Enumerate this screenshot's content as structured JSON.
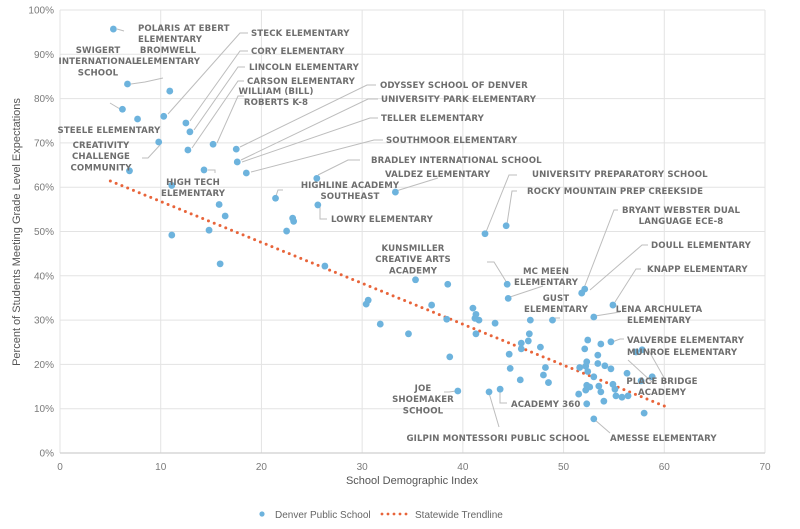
{
  "chart_data": {
    "type": "scatter",
    "title": "",
    "xlabel": "School Demographic Index",
    "ylabel": "Percent of Students Meeting Grade Level Expectations",
    "xlim": [
      0,
      70
    ],
    "ylim": [
      0,
      100
    ],
    "x_ticks": [
      "0",
      "10",
      "20",
      "30",
      "40",
      "50",
      "60",
      "70"
    ],
    "x_tick_values": [
      0,
      10,
      20,
      30,
      40,
      50,
      60,
      70
    ],
    "y_ticks": [
      "0%",
      "10%",
      "20%",
      "30%",
      "40%",
      "50%",
      "60%",
      "70%",
      "80%",
      "90%",
      "100%"
    ],
    "y_tick_values": [
      0,
      10,
      20,
      30,
      40,
      50,
      60,
      70,
      80,
      90,
      100
    ],
    "grid": true,
    "colors": {
      "points": "#6db3dd",
      "trendline": "#e8643a",
      "grid": "#e3e3e3",
      "text": "#6e6e6e"
    },
    "legend": {
      "placement": "bottom-center",
      "entries": [
        {
          "label": "Denver Public School",
          "marker": "dot"
        },
        {
          "label": "Statewide Trendline",
          "marker": "dotted-line"
        }
      ]
    },
    "trendline": {
      "name": "Statewide Trendline",
      "x": [
        5,
        60
      ],
      "y": [
        61.4,
        10.6
      ]
    },
    "series": [
      {
        "name": "Denver Public School",
        "points": [
          {
            "x": 5.3,
            "y": 95.7,
            "label": "POLARIS AT EBERT ELEMENTARY"
          },
          {
            "x": 10.9,
            "y": 81.7,
            "label": "BROMWELL ELEMENTARY"
          },
          {
            "x": 6.7,
            "y": 83.3,
            "label": "SWIGERT INTERNATIONAL SCHOOL"
          },
          {
            "x": 6.2,
            "y": 77.6
          },
          {
            "x": 7.7,
            "y": 75.4
          },
          {
            "x": 10.3,
            "y": 76.0,
            "label": "STECK ELEMENTARY"
          },
          {
            "x": 12.5,
            "y": 74.5,
            "label": "CORY ELEMENTARY"
          },
          {
            "x": 12.9,
            "y": 72.5,
            "label": "LINCOLN ELEMENTARY"
          },
          {
            "x": 9.8,
            "y": 70.2,
            "label": "STEELE ELEMENTARY"
          },
          {
            "x": 12.7,
            "y": 68.4,
            "label": "CARSON ELEMENTARY"
          },
          {
            "x": 15.2,
            "y": 69.7,
            "label": "WILLIAM (BILL) ROBERTS K-8"
          },
          {
            "x": 17.5,
            "y": 68.6,
            "label": "ODYSSEY SCHOOL OF DENVER"
          },
          {
            "x": 17.6,
            "y": 65.7,
            "label": "UNIVERSITY PARK ELEMENTARY"
          },
          {
            "x": 18.5,
            "y": 63.2,
            "label": "TELLER ELEMENTARY"
          },
          {
            "x": 6.9,
            "y": 63.7,
            "label": "CREATIVITY CHALLENGE COMMUNITY"
          },
          {
            "x": 14.3,
            "y": 63.9,
            "label": "HIGH TECH ELEMENTARY"
          },
          {
            "x": 11.1,
            "y": 60.4
          },
          {
            "x": 25.5,
            "y": 62.0,
            "label": "SOUTHMOOR ELEMENTARY"
          },
          {
            "x": 21.4,
            "y": 57.5,
            "label": "HIGHLINE ACADEMY SOUTHEAST"
          },
          {
            "x": 25.6,
            "y": 56.0,
            "label": "BRADLEY INTERNATIONAL SCHOOL"
          },
          {
            "x": 33.3,
            "y": 58.9,
            "label": "VALDEZ ELEMENTARY"
          },
          {
            "x": 15.8,
            "y": 56.1
          },
          {
            "x": 16.4,
            "y": 53.5
          },
          {
            "x": 23.2,
            "y": 52.3
          },
          {
            "x": 23.1,
            "y": 53.0
          },
          {
            "x": 14.8,
            "y": 50.3
          },
          {
            "x": 11.1,
            "y": 49.2
          },
          {
            "x": 22.5,
            "y": 50.1,
            "label": "LOWRY ELEMENTARY"
          },
          {
            "x": 15.9,
            "y": 42.7
          },
          {
            "x": 26.3,
            "y": 42.2
          },
          {
            "x": 42.2,
            "y": 49.5,
            "label": "UNIVERSITY PREPARATORY SCHOOL"
          },
          {
            "x": 44.3,
            "y": 51.3,
            "label": "ROCKY MOUNTAIN PREP CREEKSIDE"
          },
          {
            "x": 35.3,
            "y": 39.1
          },
          {
            "x": 38.5,
            "y": 38.1
          },
          {
            "x": 30.6,
            "y": 34.5
          },
          {
            "x": 30.4,
            "y": 33.6
          },
          {
            "x": 36.9,
            "y": 33.4
          },
          {
            "x": 38.4,
            "y": 30.2
          },
          {
            "x": 31.8,
            "y": 29.1
          },
          {
            "x": 34.6,
            "y": 26.9
          },
          {
            "x": 38.7,
            "y": 21.7
          },
          {
            "x": 44.4,
            "y": 38.1,
            "label": "KUNSMILLER CREATIVE ARTS ACADEMY"
          },
          {
            "x": 44.5,
            "y": 34.9,
            "label": "MC MEEN ELEMENTARY"
          },
          {
            "x": 41.0,
            "y": 32.7
          },
          {
            "x": 41.3,
            "y": 31.3
          },
          {
            "x": 41.2,
            "y": 30.4
          },
          {
            "x": 41.6,
            "y": 30.0
          },
          {
            "x": 43.2,
            "y": 29.3
          },
          {
            "x": 46.7,
            "y": 30.0
          },
          {
            "x": 48.9,
            "y": 30.0,
            "label": "GUST ELEMENTARY"
          },
          {
            "x": 52.1,
            "y": 37.0,
            "label": "BRYANT WEBSTER DUAL LANGUAGE ECE-8"
          },
          {
            "x": 51.8,
            "y": 36.1,
            "label": "DOULL ELEMENTARY"
          },
          {
            "x": 54.9,
            "y": 33.4,
            "label": "KNAPP ELEMENTARY"
          },
          {
            "x": 53.0,
            "y": 30.7,
            "label": "LENA ARCHULETA ELEMENTARY"
          },
          {
            "x": 41.3,
            "y": 26.9
          },
          {
            "x": 46.6,
            "y": 26.9
          },
          {
            "x": 46.5,
            "y": 25.3
          },
          {
            "x": 45.8,
            "y": 24.8
          },
          {
            "x": 45.8,
            "y": 23.5
          },
          {
            "x": 47.7,
            "y": 23.9
          },
          {
            "x": 44.6,
            "y": 22.3
          },
          {
            "x": 44.7,
            "y": 19.1
          },
          {
            "x": 48.2,
            "y": 19.3
          },
          {
            "x": 48.0,
            "y": 17.6
          },
          {
            "x": 45.7,
            "y": 16.5
          },
          {
            "x": 48.5,
            "y": 15.9
          },
          {
            "x": 52.4,
            "y": 25.5
          },
          {
            "x": 53.7,
            "y": 24.6
          },
          {
            "x": 54.7,
            "y": 25.1,
            "label": "VALVERDE ELEMENTARY"
          },
          {
            "x": 52.1,
            "y": 23.5
          },
          {
            "x": 53.4,
            "y": 22.1
          },
          {
            "x": 57.2,
            "y": 22.8
          },
          {
            "x": 57.8,
            "y": 23.3,
            "label": "MUNROE ELEMENTARY"
          },
          {
            "x": 51.6,
            "y": 19.3
          },
          {
            "x": 52.2,
            "y": 19.6
          },
          {
            "x": 52.3,
            "y": 20.6
          },
          {
            "x": 53.4,
            "y": 20.2
          },
          {
            "x": 54.1,
            "y": 19.7
          },
          {
            "x": 54.7,
            "y": 19.0
          },
          {
            "x": 52.4,
            "y": 18.4
          },
          {
            "x": 53.0,
            "y": 17.2
          },
          {
            "x": 56.3,
            "y": 18.0
          },
          {
            "x": 57.7,
            "y": 16.3,
            "label": "PLACE BRIDGE ACADEMY"
          },
          {
            "x": 58.8,
            "y": 17.2
          },
          {
            "x": 52.3,
            "y": 15.3
          },
          {
            "x": 52.2,
            "y": 14.2
          },
          {
            "x": 52.6,
            "y": 14.9
          },
          {
            "x": 53.5,
            "y": 15.1
          },
          {
            "x": 54.9,
            "y": 15.5
          },
          {
            "x": 55.1,
            "y": 14.4
          },
          {
            "x": 55.2,
            "y": 12.9
          },
          {
            "x": 55.8,
            "y": 12.6
          },
          {
            "x": 56.4,
            "y": 12.9
          },
          {
            "x": 53.7,
            "y": 13.8
          },
          {
            "x": 51.5,
            "y": 13.3
          },
          {
            "x": 54.0,
            "y": 11.7
          },
          {
            "x": 52.3,
            "y": 11.1,
            "label": "ACADEMY 360"
          },
          {
            "x": 58.0,
            "y": 9.0
          },
          {
            "x": 53.0,
            "y": 7.7,
            "label": "AMESSE ELEMENTARY"
          },
          {
            "x": 39.5,
            "y": 14.0,
            "label": "JOE SHOEMAKER SCHOOL"
          },
          {
            "x": 42.6,
            "y": 13.8,
            "label": "GILPIN MONTESSORI PUBLIC SCHOOL"
          },
          {
            "x": 43.7,
            "y": 14.4
          }
        ]
      }
    ],
    "annotations": [
      {
        "text": [
          "POLARIS AT EBERT",
          "ELEMENTARY"
        ]
      },
      {
        "text": [
          "BROMWELL",
          "ELEMENTARY"
        ]
      },
      {
        "text": [
          "SWIGERT",
          "INTERNATIONAL",
          "SCHOOL"
        ]
      },
      {
        "text": [
          "STECK ELEMENTARY"
        ]
      },
      {
        "text": [
          "CORY ELEMENTARY"
        ]
      },
      {
        "text": [
          "LINCOLN ELEMENTARY"
        ]
      },
      {
        "text": [
          "CARSON ELEMENTARY"
        ]
      },
      {
        "text": [
          "WILLIAM (BILL)",
          "ROBERTS K-8"
        ]
      },
      {
        "text": [
          "STEELE ELEMENTARY"
        ]
      },
      {
        "text": [
          "CREATIVITY",
          "CHALLENGE",
          "COMMUNITY"
        ]
      },
      {
        "text": [
          "ODYSSEY SCHOOL OF DENVER"
        ]
      },
      {
        "text": [
          "UNIVERSITY PARK ELEMENTARY"
        ]
      },
      {
        "text": [
          "TELLER ELEMENTARY"
        ]
      },
      {
        "text": [
          "SOUTHMOOR ELEMENTARY"
        ]
      },
      {
        "text": [
          "HIGH TECH",
          "ELEMENTARY"
        ]
      },
      {
        "text": [
          "BRADLEY INTERNATIONAL SCHOOL"
        ]
      },
      {
        "text": [
          "HIGHLINE ACADEMY",
          "SOUTHEAST"
        ]
      },
      {
        "text": [
          "VALDEZ ELEMENTARY"
        ]
      },
      {
        "text": [
          "LOWRY ELEMENTARY"
        ]
      },
      {
        "text": [
          "UNIVERSITY PREPARATORY SCHOOL"
        ]
      },
      {
        "text": [
          "ROCKY MOUNTAIN PREP CREEKSIDE"
        ]
      },
      {
        "text": [
          "BRYANT WEBSTER DUAL",
          "LANGUAGE ECE-8"
        ]
      },
      {
        "text": [
          "KUNSMILLER",
          "CREATIVE ARTS",
          "ACADEMY"
        ]
      },
      {
        "text": [
          "MC MEEN",
          "ELEMENTARY"
        ]
      },
      {
        "text": [
          "DOULL ELEMENTARY"
        ]
      },
      {
        "text": [
          "KNAPP ELEMENTARY"
        ]
      },
      {
        "text": [
          "GUST",
          "ELEMENTARY"
        ]
      },
      {
        "text": [
          "LENA ARCHULETA",
          "ELEMENTARY"
        ]
      },
      {
        "text": [
          "VALVERDE ELEMENTARY"
        ]
      },
      {
        "text": [
          "MUNROE ELEMENTARY"
        ]
      },
      {
        "text": [
          "PLACE BRIDGE",
          "ACADEMY"
        ]
      },
      {
        "text": [
          "JOE",
          "SHOEMAKER",
          "SCHOOL"
        ]
      },
      {
        "text": [
          "ACADEMY 360"
        ]
      },
      {
        "text": [
          "GILPIN MONTESSORI PUBLIC SCHOOL"
        ]
      },
      {
        "text": [
          "AMESSE ELEMENTARY"
        ]
      }
    ]
  }
}
